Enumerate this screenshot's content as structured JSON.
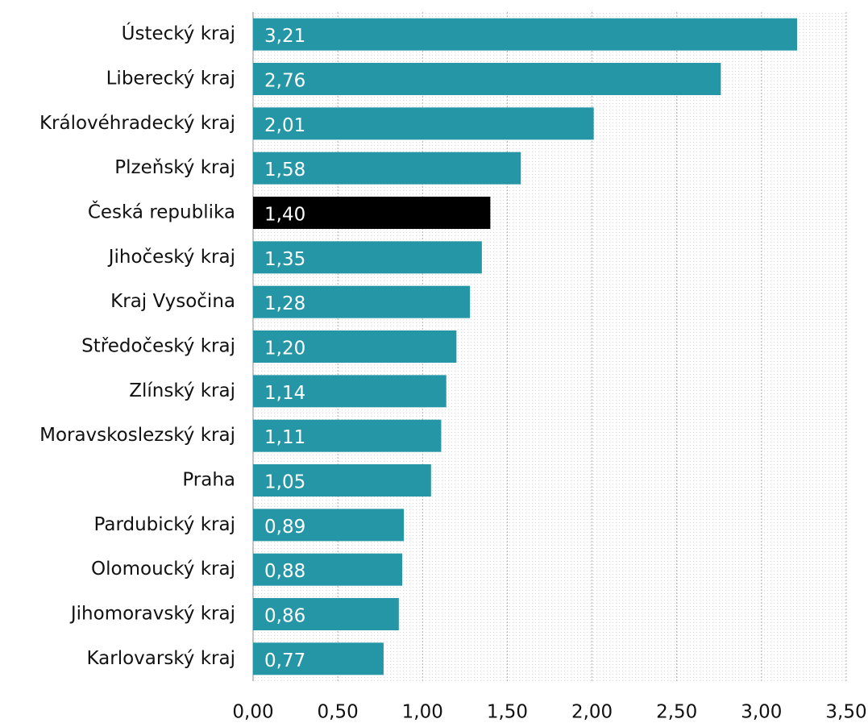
{
  "chart_data": {
    "type": "bar",
    "orientation": "horizontal",
    "categories": [
      "Ústecký kraj",
      "Liberecký kraj",
      "Královéhradecký kraj",
      "Plzeňský kraj",
      "Česká republika",
      "Jihočeský kraj",
      "Kraj Vysočina",
      "Středočeský kraj",
      "Zlínský kraj",
      "Moravskoslezský kraj",
      "Praha",
      "Pardubický kraj",
      "Olomoucký kraj",
      "Jihomoravský kraj",
      "Karlovarský kraj"
    ],
    "values": [
      3.21,
      2.76,
      2.01,
      1.58,
      1.4,
      1.35,
      1.28,
      1.2,
      1.14,
      1.11,
      1.05,
      0.89,
      0.88,
      0.86,
      0.77
    ],
    "value_labels": [
      "3,21",
      "2,76",
      "2,01",
      "1,58",
      "1,40",
      "1,35",
      "1,28",
      "1,20",
      "1,14",
      "1,11",
      "1,05",
      "0,89",
      "0,88",
      "0,86",
      "0,77"
    ],
    "colors": [
      "#2596a5",
      "#2596a5",
      "#2596a5",
      "#2596a5",
      "#000000",
      "#2596a5",
      "#2596a5",
      "#2596a5",
      "#2596a5",
      "#2596a5",
      "#2596a5",
      "#2596a5",
      "#2596a5",
      "#2596a5",
      "#2596a5"
    ],
    "xlim": [
      0,
      3.5
    ],
    "xticks": [
      {
        "value": 0,
        "label": "0,00"
      },
      {
        "value": 0.5,
        "label": "0,50"
      },
      {
        "value": 1,
        "label": "1,00"
      },
      {
        "value": 1.5,
        "label": "1,50"
      },
      {
        "value": 2,
        "label": "2,00"
      },
      {
        "value": 2.5,
        "label": "2,50"
      },
      {
        "value": 3,
        "label": "3,00"
      },
      {
        "value": 3.5,
        "label": "3,50"
      }
    ],
    "grid": true
  }
}
